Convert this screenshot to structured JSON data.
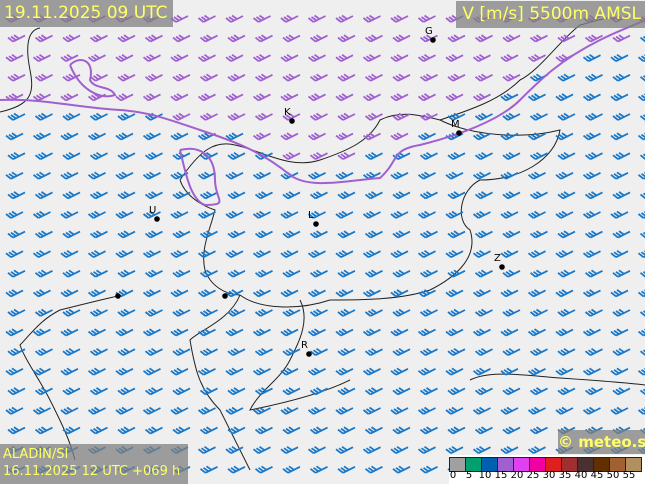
{
  "header": {
    "valid_time": "19.11.2025 09 UTC",
    "parameter": "V [m/s] 5500m AMSL"
  },
  "footer": {
    "model": "ALADIN/SI",
    "run": "16.11.2025 12 UTC +069 h",
    "copyright": "© meteo.si"
  },
  "legend": {
    "colors": [
      "#a0a0a0",
      "#00a070",
      "#0060b0",
      "#a060d0",
      "#e040f0",
      "#f000a0",
      "#e02020",
      "#a03030",
      "#4a3030",
      "#603000",
      "#a06030",
      "#b09060"
    ],
    "ticks": [
      "0",
      "5",
      "10",
      "15",
      "20",
      "25",
      "30",
      "35",
      "40",
      "45",
      "50",
      "55"
    ]
  },
  "wind": {
    "direction": "WSW",
    "colors": {
      "10-15": "#1a78c8",
      "15-20": "#a060d0"
    }
  },
  "cities": [
    {
      "label": "G"
    },
    {
      "label": "K"
    },
    {
      "label": "M"
    },
    {
      "label": "U"
    },
    {
      "label": "L"
    },
    {
      "label": "Z"
    },
    {
      "label": "R"
    }
  ]
}
